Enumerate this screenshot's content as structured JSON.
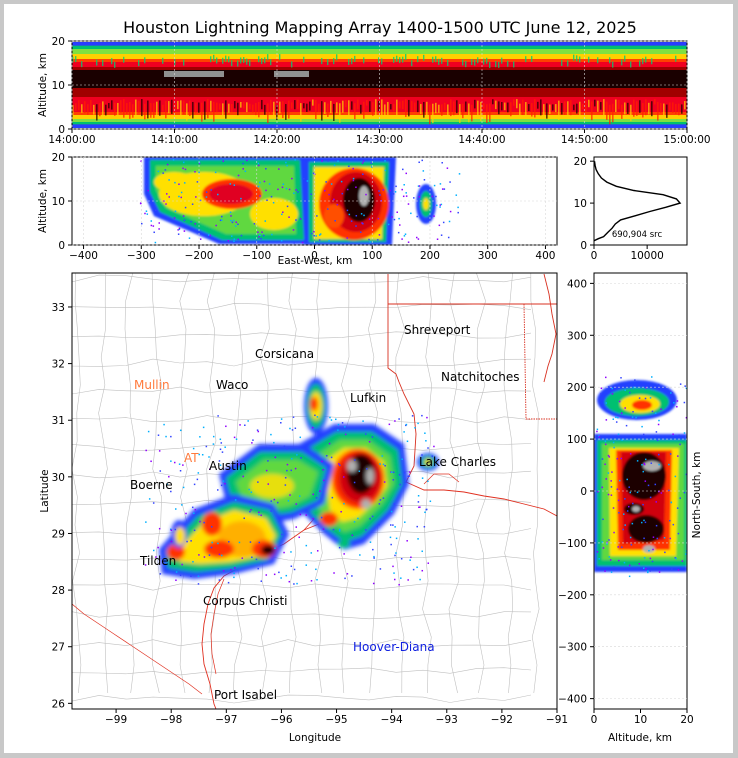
{
  "title": "Houston Lightning Mapping Array 1400-1500 UTC June 12, 2025",
  "colors": {
    "density_scale": [
      "#9000ff",
      "#3344ff",
      "#00b0ff",
      "#00c878",
      "#00e05a",
      "#b8e830",
      "#ffe800",
      "#ff9a00",
      "#ff3a00",
      "#ff0030",
      "#c80000",
      "#1a0000",
      "#a0a0a0",
      "#ffffff"
    ],
    "coastline": "#e03020",
    "state_border": "#e03020",
    "county_line": "#b4b4b4",
    "city_gray": "#000000",
    "city_orange": "#ff7a3c",
    "city_blue": "#1020e0",
    "city_green": "#40c040",
    "background": "#c8c8c8"
  },
  "chart_data": [
    {
      "type": "heatmap",
      "name": "time-altitude",
      "ylabel": "Altitude, km",
      "xlabel": "",
      "x_ticks": [
        "14:00:00",
        "14:10:00",
        "14:20:00",
        "14:30:00",
        "14:40:00",
        "14:50:00",
        "15:00:00"
      ],
      "y_ticks": [
        "0",
        "10",
        "20"
      ],
      "ylim": [
        0,
        20
      ],
      "xlim": [
        "14:00:00",
        "15:00:00"
      ]
    },
    {
      "type": "heatmap",
      "name": "east-west-altitude",
      "ylabel": "Altitude, km",
      "xlabel": "East-West, km",
      "x_ticks": [
        "−400",
        "−300",
        "−200",
        "−100",
        "0",
        "100",
        "200",
        "300",
        "400"
      ],
      "y_ticks": [
        "0",
        "10",
        "20"
      ],
      "xlim": [
        -420,
        420
      ],
      "ylim": [
        0,
        20
      ]
    },
    {
      "type": "line",
      "name": "altitude-histogram",
      "x_ticks": [
        "0",
        "10000"
      ],
      "y_ticks": [
        "0",
        "5",
        "10",
        "15",
        "20"
      ],
      "ylim": [
        0,
        20
      ],
      "annotation": "690,904 src",
      "profile": [
        [
          1,
          0
        ],
        [
          1.5,
          800
        ],
        [
          2,
          1800
        ],
        [
          3,
          2600
        ],
        [
          4,
          3400
        ],
        [
          5,
          4000
        ],
        [
          6,
          5000
        ],
        [
          7,
          7800
        ],
        [
          8,
          10500
        ],
        [
          9,
          13500
        ],
        [
          10,
          16200
        ],
        [
          11,
          15500
        ],
        [
          12,
          13000
        ],
        [
          13,
          7500
        ],
        [
          14,
          4200
        ],
        [
          15,
          2400
        ],
        [
          16,
          1400
        ],
        [
          17,
          800
        ],
        [
          18,
          400
        ],
        [
          19,
          200
        ],
        [
          20,
          100
        ]
      ]
    },
    {
      "type": "heatmap",
      "name": "plan-view",
      "xlabel": "Longitude",
      "ylabel": "Latitude",
      "x_ticks": [
        "−99",
        "−98",
        "−97",
        "−96",
        "−95",
        "−94",
        "−93",
        "−92",
        "−91"
      ],
      "y_ticks": [
        "26",
        "27",
        "28",
        "29",
        "30",
        "31",
        "32",
        "33"
      ],
      "xlim": [
        -99.8,
        -91
      ],
      "ylim": [
        25.9,
        33.6
      ],
      "cities": [
        {
          "name": "Shreveport",
          "color": "gray"
        },
        {
          "name": "Corsicana",
          "color": "gray"
        },
        {
          "name": "Mullin",
          "color": "orange"
        },
        {
          "name": "Waco",
          "color": "gray"
        },
        {
          "name": "Natchitoches",
          "color": "gray"
        },
        {
          "name": "Lufkin",
          "color": "gray"
        },
        {
          "name": "Lake Charles",
          "color": "gray"
        },
        {
          "name": "AT",
          "color": "orange"
        },
        {
          "name": "Austin",
          "color": "gray"
        },
        {
          "name": "Boerne",
          "color": "gray"
        },
        {
          "name": "Tilden",
          "color": "gray"
        },
        {
          "name": "Corpus Christi",
          "color": "gray"
        },
        {
          "name": "Hoover-Diana",
          "color": "blue"
        },
        {
          "name": "Port Isabel",
          "color": "gray"
        }
      ]
    },
    {
      "type": "heatmap",
      "name": "altitude-north-south",
      "xlabel": "Altitude, km",
      "ylabel": "North-South, km",
      "x_ticks": [
        "0",
        "10",
        "20"
      ],
      "y_ticks": [
        "−400",
        "−300",
        "−200",
        "−100",
        "0",
        "100",
        "200",
        "300",
        "400"
      ],
      "xlim": [
        0,
        20
      ],
      "ylim": [
        -420,
        420
      ]
    }
  ]
}
